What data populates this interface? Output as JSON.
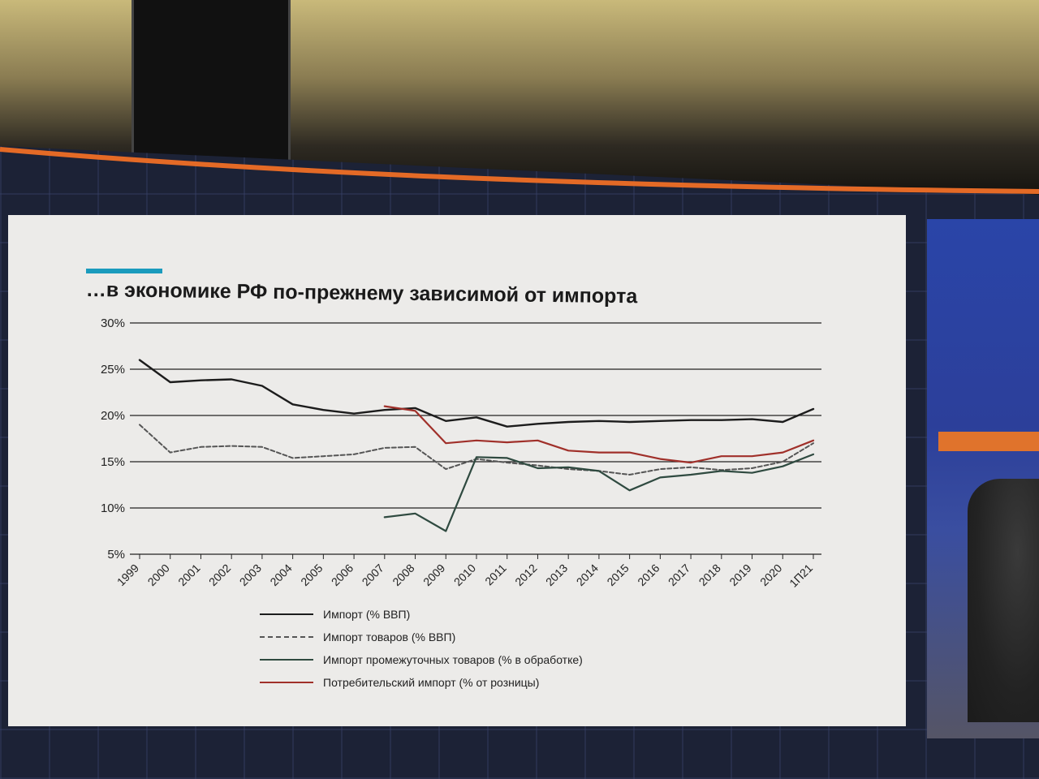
{
  "slide": {
    "title": "…в экономике РФ по-прежнему зависимой от импорта"
  },
  "colors": {
    "accent": "#1a9bbd",
    "slide_background": "#ecebe9",
    "series_import_gdp": "#1c1c1c",
    "series_goods_gdp": "#555555",
    "series_intermediate": "#2f4a40",
    "series_consumer": "#a0302a"
  },
  "chart_data": {
    "type": "line",
    "x": [
      "1999",
      "2000",
      "2001",
      "2002",
      "2003",
      "2004",
      "2005",
      "2006",
      "2007",
      "2008",
      "2009",
      "2010",
      "2011",
      "2012",
      "2013",
      "2014",
      "2015",
      "2016",
      "2017",
      "2018",
      "2019",
      "2020",
      "1П21"
    ],
    "ylim": [
      5,
      30
    ],
    "yticks": [
      "5%",
      "10%",
      "15%",
      "20%",
      "25%",
      "30%"
    ],
    "grid": true,
    "legend_position": "bottom",
    "series": [
      {
        "name": "Импорт (% ВВП)",
        "values": [
          26,
          23.6,
          23.8,
          23.9,
          23.2,
          21.2,
          20.6,
          20.2,
          20.6,
          20.8,
          19.4,
          19.8,
          18.8,
          19.1,
          19.3,
          19.4,
          19.3,
          19.4,
          19.5,
          19.5,
          19.6,
          19.3,
          20.7
        ]
      },
      {
        "name": "Импорт товаров (% ВВП)",
        "values": [
          19,
          16,
          16.6,
          16.7,
          16.6,
          15.4,
          15.6,
          15.8,
          16.5,
          16.6,
          14.2,
          15.3,
          14.9,
          14.6,
          14.2,
          14.0,
          13.6,
          14.2,
          14.4,
          14.1,
          14.3,
          15.0,
          17.0
        ]
      },
      {
        "name": "Импорт промежуточных товаров (% в обработке)",
        "values": [
          null,
          null,
          null,
          null,
          null,
          null,
          null,
          null,
          9.0,
          9.4,
          7.5,
          15.5,
          15.4,
          14.3,
          14.4,
          14.0,
          11.9,
          13.3,
          13.6,
          14.0,
          13.8,
          14.5,
          15.8
        ]
      },
      {
        "name": "Потребительский импорт (% от розницы)",
        "values": [
          null,
          null,
          null,
          null,
          null,
          null,
          null,
          null,
          21.0,
          20.5,
          17.0,
          17.3,
          17.1,
          17.3,
          16.2,
          16.0,
          16.0,
          15.3,
          14.9,
          15.6,
          15.6,
          16.0,
          17.3
        ]
      }
    ]
  }
}
